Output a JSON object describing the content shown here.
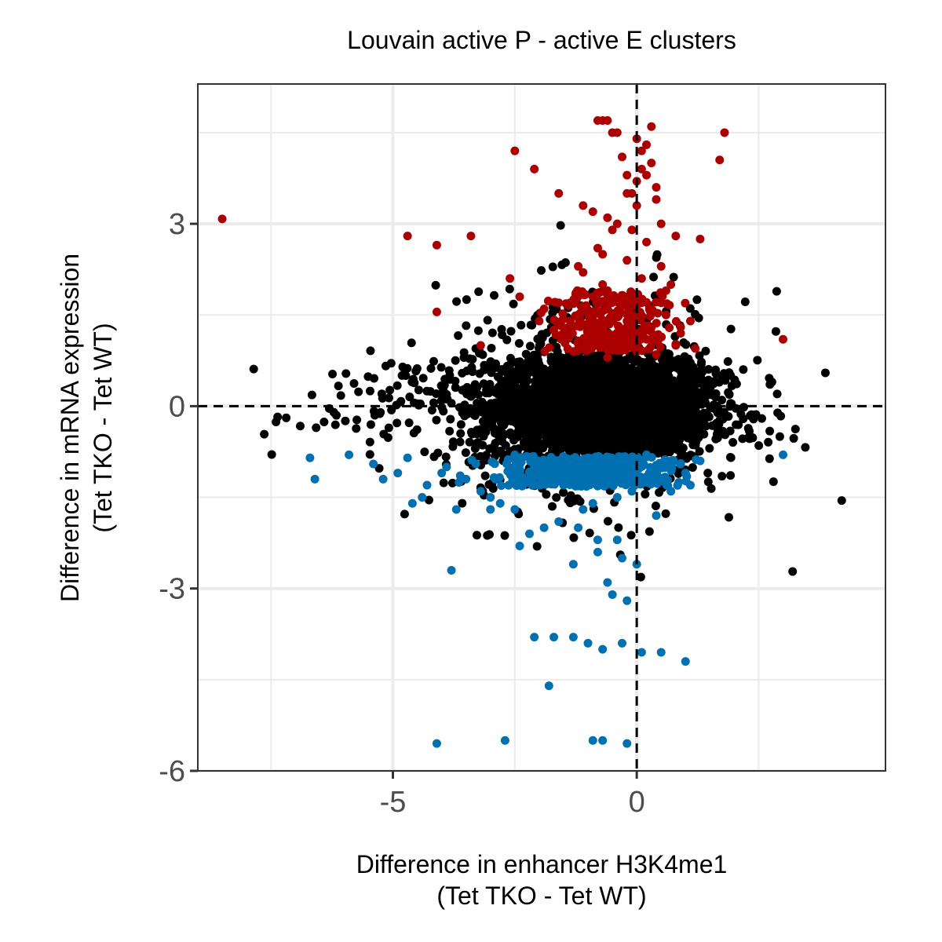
{
  "chart_data": {
    "type": "scatter",
    "title": "Louvain active P - active E clusters",
    "xlabel_line1": "Difference in enhancer H3K4me1",
    "xlabel_line2": "(Tet TKO - Tet WT)",
    "ylabel_line1": "Difference in mRNA expression",
    "ylabel_line2": "(Tet TKO - Tet WT)",
    "xlim": [
      -9.0,
      5.1
    ],
    "ylim": [
      -6.0,
      5.3
    ],
    "xticks": [
      -5,
      0
    ],
    "xtick_labels": [
      "-5",
      "0"
    ],
    "yticks": [
      -6,
      -3,
      0,
      3
    ],
    "ytick_labels": [
      "-6",
      "-3",
      "0",
      "3"
    ],
    "grid": true,
    "reference_lines": {
      "x": 0,
      "y": 0,
      "style": "dashed"
    },
    "colors": {
      "up": "#aa0000",
      "down": "#0070b0",
      "neutral": "#000000",
      "grid": "#ebebeb",
      "panel_border": "#333333"
    },
    "series": [
      {
        "group": "up",
        "x": [
          -8.5,
          -4.7,
          -4.1,
          -3.4,
          -2.5,
          -2.1,
          -1.6,
          -1.1,
          -0.9,
          -0.8,
          -0.7,
          -0.6,
          -0.5,
          -0.4,
          -0.3,
          -0.2,
          -0.1,
          0.0,
          0.1,
          0.2,
          0.3,
          0.4,
          0.5,
          0.8,
          1.3,
          1.8,
          1.7,
          3.0,
          -2.4,
          -2.6,
          -1.9,
          -1.4,
          -1.2,
          -1.0,
          -0.6,
          -0.3,
          -0.1,
          0.1,
          0.3,
          0.6,
          0.9,
          1.1,
          -1.1,
          -0.8,
          -0.5,
          -0.2,
          0.2,
          0.5,
          0.7,
          -1.3,
          -0.9,
          -0.6,
          -0.4,
          0.0,
          0.4,
          0.8,
          1.2,
          -2.0,
          -1.6,
          -0.7,
          -0.3,
          0.1,
          0.3,
          0.6,
          -4.1,
          -3.2,
          -1.5,
          -0.9,
          -0.5,
          -0.2,
          0.2,
          0.5,
          0.9,
          -1.2,
          -0.7,
          -0.1,
          0.4,
          -0.4,
          0.0,
          0.3,
          -0.6,
          -0.2,
          0.1,
          0.2,
          0.0
        ],
        "y": [
          3.08,
          2.8,
          2.65,
          2.8,
          4.2,
          3.9,
          3.5,
          3.3,
          3.2,
          4.7,
          4.7,
          4.7,
          4.5,
          4.5,
          4.1,
          3.8,
          3.5,
          3.3,
          3.9,
          4.3,
          4.6,
          3.6,
          3.0,
          2.8,
          2.75,
          4.5,
          4.05,
          1.1,
          1.8,
          2.1,
          1.6,
          1.3,
          1.5,
          1.1,
          1.9,
          1.2,
          1.4,
          1.7,
          1.3,
          1.5,
          1.2,
          1.4,
          2.2,
          2.6,
          2.9,
          2.4,
          2.7,
          2.3,
          2.0,
          0.9,
          1.0,
          0.8,
          1.1,
          0.9,
          0.85,
          1.0,
          0.95,
          1.4,
          1.7,
          2.0,
          1.8,
          2.1,
          1.6,
          1.9,
          1.55,
          1.0,
          1.2,
          1.8,
          1.5,
          1.3,
          1.1,
          1.7,
          1.3,
          2.3,
          2.5,
          2.9,
          3.4,
          3.0,
          3.7,
          4.0,
          3.1,
          3.5,
          4.2,
          3.8,
          4.4
        ]
      },
      {
        "group": "down",
        "x": [
          -6.7,
          -6.6,
          -5.9,
          -5.4,
          -4.7,
          -4.3,
          -4.0,
          -3.7,
          -3.3,
          -2.9,
          -2.5,
          -2.1,
          -1.8,
          -1.4,
          -1.0,
          -0.6,
          -0.2,
          0.2,
          0.6,
          1.0,
          1.3,
          3.0,
          -3.8,
          -2.4,
          -1.6,
          -1.2,
          -0.8,
          -0.4,
          0.0,
          0.4,
          -2.1,
          -1.7,
          -1.3,
          -1.0,
          -0.7,
          -0.3,
          -0.6,
          -0.2,
          -4.1,
          -2.7,
          -0.9,
          -0.7,
          -0.2,
          -1.8,
          -2.2,
          -1.3,
          -0.5,
          0.1,
          0.5,
          1.0,
          -3.2,
          -2.8,
          -1.5,
          -0.9,
          -0.4,
          -4.9,
          -4.4,
          -3.5,
          -3.0,
          -2.0,
          -1.1,
          -0.1,
          0.3,
          0.7,
          1.1,
          -2.5,
          -1.9,
          -0.8,
          -0.3,
          -5.2,
          -4.6,
          -3.9,
          -3.0
        ],
        "y": [
          -0.85,
          -1.2,
          -0.8,
          -0.95,
          -0.85,
          -1.3,
          -1.1,
          -1.7,
          -0.95,
          -1.2,
          -0.8,
          -1.0,
          -0.9,
          -0.95,
          -0.85,
          -1.0,
          -0.9,
          -0.8,
          -1.0,
          -1.1,
          -0.9,
          -0.8,
          -2.7,
          -2.3,
          -1.9,
          -2.0,
          -2.4,
          -2.2,
          -2.6,
          -1.8,
          -3.8,
          -3.8,
          -3.8,
          -3.9,
          -4.0,
          -3.9,
          -2.9,
          -3.2,
          -5.55,
          -5.5,
          -5.5,
          -5.5,
          -5.55,
          -4.6,
          -2.1,
          -2.6,
          -3.1,
          -4.05,
          -4.05,
          -4.2,
          -1.4,
          -1.6,
          -1.3,
          -1.6,
          -1.5,
          -1.1,
          -1.5,
          -1.2,
          -1.5,
          -1.3,
          -1.7,
          -1.4,
          -1.2,
          -1.4,
          -1.3,
          -1.7,
          -2.0,
          -2.2,
          -2.5,
          -1.2,
          -1.6,
          -1.0,
          -1.7
        ]
      }
    ]
  }
}
